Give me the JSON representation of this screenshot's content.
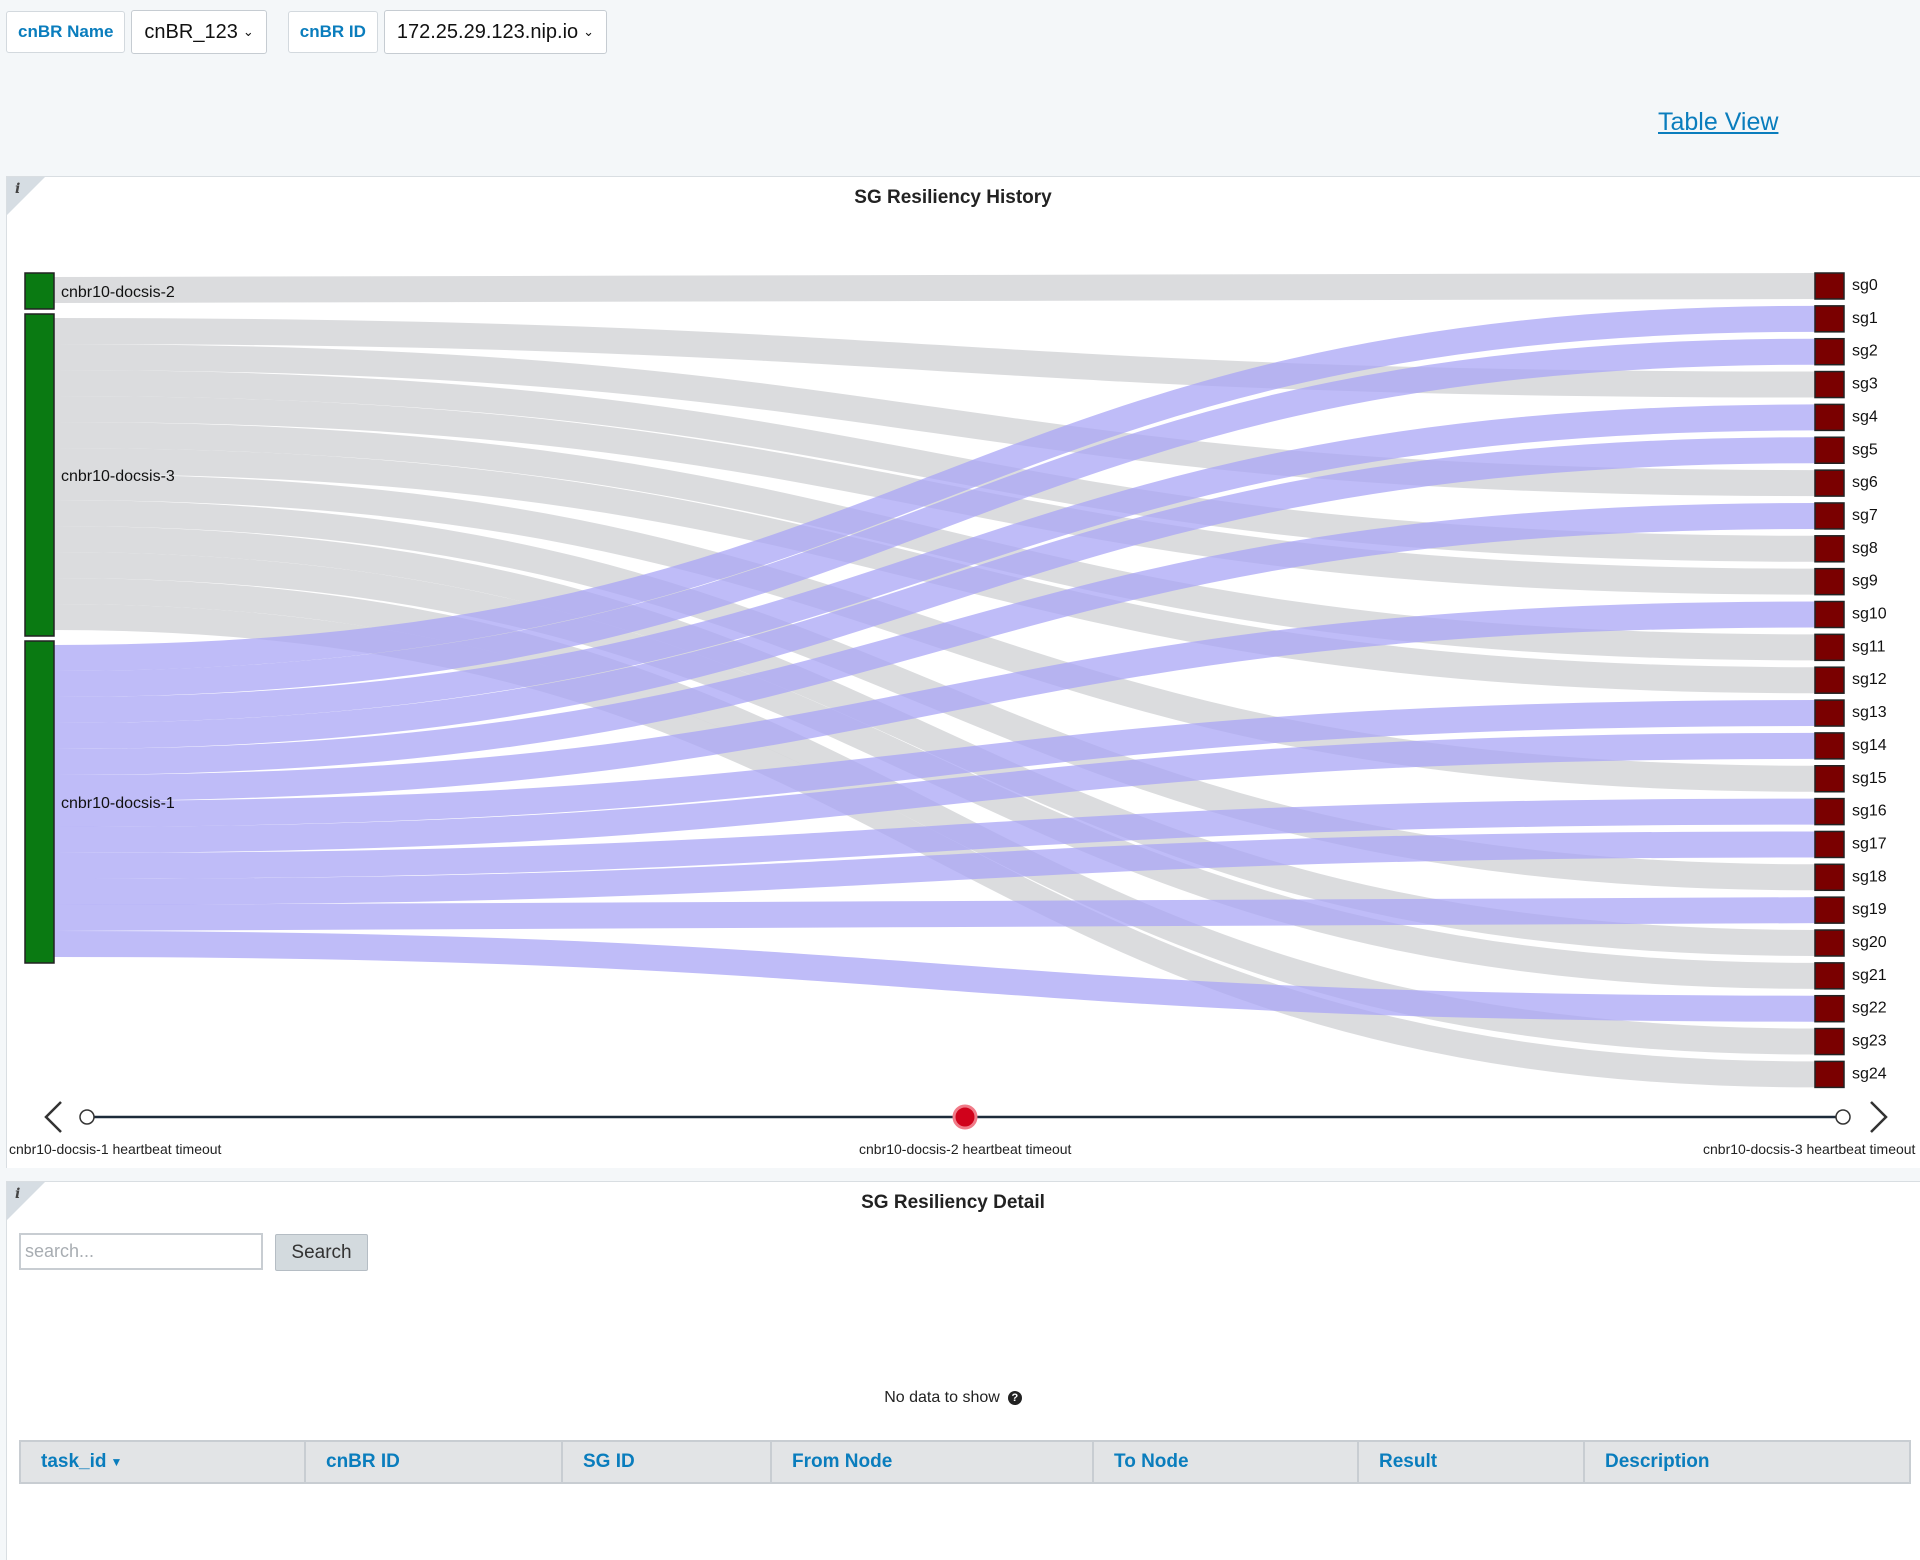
{
  "filters": {
    "cnbr_name_label": "cnBR Name",
    "cnbr_name_value": "cnBR_123",
    "cnbr_id_label": "cnBR ID",
    "cnbr_id_value": "172.25.29.123.nip.io"
  },
  "table_view_link": "Table View",
  "history_panel": {
    "title": "SG Resiliency History",
    "info_icon": "i"
  },
  "chart_data": {
    "type": "sankey",
    "sources": [
      {
        "name": "cnbr10-docsis-2",
        "color": "#0a7a12"
      },
      {
        "name": "cnbr10-docsis-3",
        "color": "#0a7a12"
      },
      {
        "name": "cnbr10-docsis-1",
        "color": "#0a7a12"
      }
    ],
    "targets": [
      "sg0",
      "sg1",
      "sg2",
      "sg3",
      "sg4",
      "sg5",
      "sg6",
      "sg7",
      "sg8",
      "sg9",
      "sg10",
      "sg11",
      "sg12",
      "sg13",
      "sg14",
      "sg15",
      "sg16",
      "sg17",
      "sg18",
      "sg19",
      "sg20",
      "sg21",
      "sg22",
      "sg23",
      "sg24"
    ],
    "target_color": "#7a0000",
    "links": [
      {
        "source": "cnbr10-docsis-2",
        "target": "sg0",
        "value": 1,
        "color": "gray"
      },
      {
        "source": "cnbr10-docsis-3",
        "target": "sg3",
        "value": 1,
        "color": "gray"
      },
      {
        "source": "cnbr10-docsis-3",
        "target": "sg6",
        "value": 1,
        "color": "gray"
      },
      {
        "source": "cnbr10-docsis-3",
        "target": "sg8",
        "value": 1,
        "color": "gray"
      },
      {
        "source": "cnbr10-docsis-3",
        "target": "sg9",
        "value": 1,
        "color": "gray"
      },
      {
        "source": "cnbr10-docsis-3",
        "target": "sg11",
        "value": 1,
        "color": "gray"
      },
      {
        "source": "cnbr10-docsis-3",
        "target": "sg12",
        "value": 1,
        "color": "gray"
      },
      {
        "source": "cnbr10-docsis-3",
        "target": "sg15",
        "value": 1,
        "color": "gray"
      },
      {
        "source": "cnbr10-docsis-3",
        "target": "sg18",
        "value": 1,
        "color": "gray"
      },
      {
        "source": "cnbr10-docsis-3",
        "target": "sg20",
        "value": 1,
        "color": "gray"
      },
      {
        "source": "cnbr10-docsis-3",
        "target": "sg21",
        "value": 1,
        "color": "gray"
      },
      {
        "source": "cnbr10-docsis-3",
        "target": "sg23",
        "value": 1,
        "color": "gray"
      },
      {
        "source": "cnbr10-docsis-3",
        "target": "sg24",
        "value": 1,
        "color": "gray"
      },
      {
        "source": "cnbr10-docsis-1",
        "target": "sg1",
        "value": 1,
        "color": "purple"
      },
      {
        "source": "cnbr10-docsis-1",
        "target": "sg2",
        "value": 1,
        "color": "purple"
      },
      {
        "source": "cnbr10-docsis-1",
        "target": "sg4",
        "value": 1,
        "color": "purple"
      },
      {
        "source": "cnbr10-docsis-1",
        "target": "sg5",
        "value": 1,
        "color": "purple"
      },
      {
        "source": "cnbr10-docsis-1",
        "target": "sg7",
        "value": 1,
        "color": "purple"
      },
      {
        "source": "cnbr10-docsis-1",
        "target": "sg10",
        "value": 1,
        "color": "purple"
      },
      {
        "source": "cnbr10-docsis-1",
        "target": "sg13",
        "value": 1,
        "color": "purple"
      },
      {
        "source": "cnbr10-docsis-1",
        "target": "sg14",
        "value": 1,
        "color": "purple"
      },
      {
        "source": "cnbr10-docsis-1",
        "target": "sg16",
        "value": 1,
        "color": "purple"
      },
      {
        "source": "cnbr10-docsis-1",
        "target": "sg17",
        "value": 1,
        "color": "purple"
      },
      {
        "source": "cnbr10-docsis-1",
        "target": "sg19",
        "value": 1,
        "color": "purple"
      },
      {
        "source": "cnbr10-docsis-1",
        "target": "sg22",
        "value": 1,
        "color": "purple"
      }
    ],
    "link_colors": {
      "gray": "#d5d6d8",
      "purple": "#aaa6f6"
    }
  },
  "timeline": {
    "events": [
      "cnbr10-docsis-1 heartbeat timeout",
      "cnbr10-docsis-2 heartbeat timeout",
      "cnbr10-docsis-3 heartbeat timeout"
    ],
    "active_index": 1,
    "active_color": "#d0021b"
  },
  "detail_panel": {
    "title": "SG Resiliency Detail",
    "info_icon": "i",
    "search_placeholder": "search...",
    "search_button": "Search",
    "no_data": "No data to show",
    "columns": [
      "task_id",
      "cnBR ID",
      "SG ID",
      "From Node",
      "To Node",
      "Result",
      "Description"
    ],
    "sorted_column": "task_id"
  }
}
